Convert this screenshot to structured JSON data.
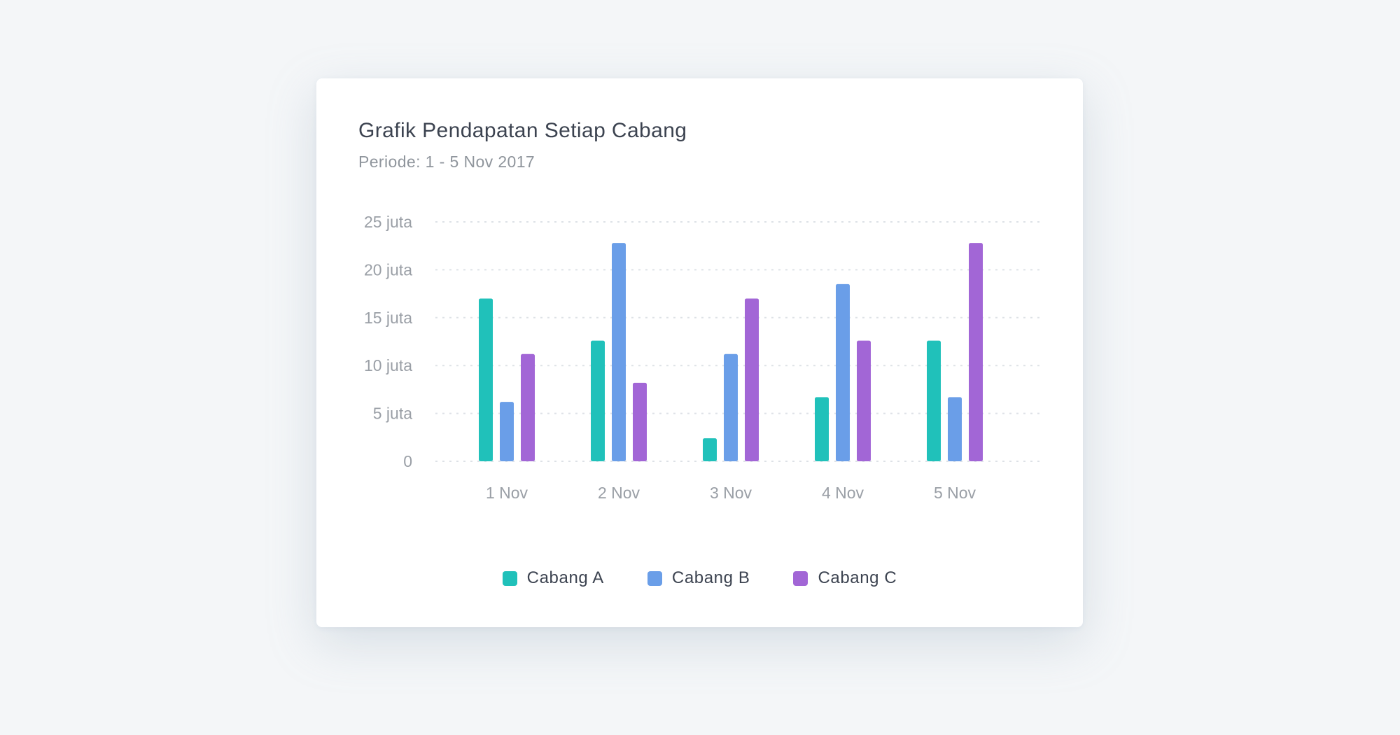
{
  "chart_data": {
    "type": "bar",
    "title": "Grafik Pendapatan Setiap Cabang",
    "subtitle": "Periode: 1 - 5 Nov 2017",
    "categories": [
      "1 Nov",
      "2 Nov",
      "3 Nov",
      "4 Nov",
      "5 Nov"
    ],
    "series": [
      {
        "name": "Cabang A",
        "color": "#20c1ba",
        "values": [
          17,
          12.6,
          2.4,
          6.7,
          12.6
        ]
      },
      {
        "name": "Cabang B",
        "color": "#6a9ee8",
        "values": [
          6.2,
          22.8,
          11.2,
          18.5,
          6.7
        ]
      },
      {
        "name": "Cabang C",
        "color": "#a266d6",
        "values": [
          11.2,
          8.2,
          17,
          12.6,
          22.8
        ]
      }
    ],
    "yticks": [
      {
        "value": 0,
        "label": "0"
      },
      {
        "value": 5,
        "label": "5 juta"
      },
      {
        "value": 10,
        "label": "10 juta"
      },
      {
        "value": 15,
        "label": "15 juta"
      },
      {
        "value": 20,
        "label": "20 juta"
      },
      {
        "value": 25,
        "label": "25 juta"
      }
    ],
    "ylim": [
      0,
      25
    ],
    "grid": true,
    "legend_position": "bottom"
  }
}
